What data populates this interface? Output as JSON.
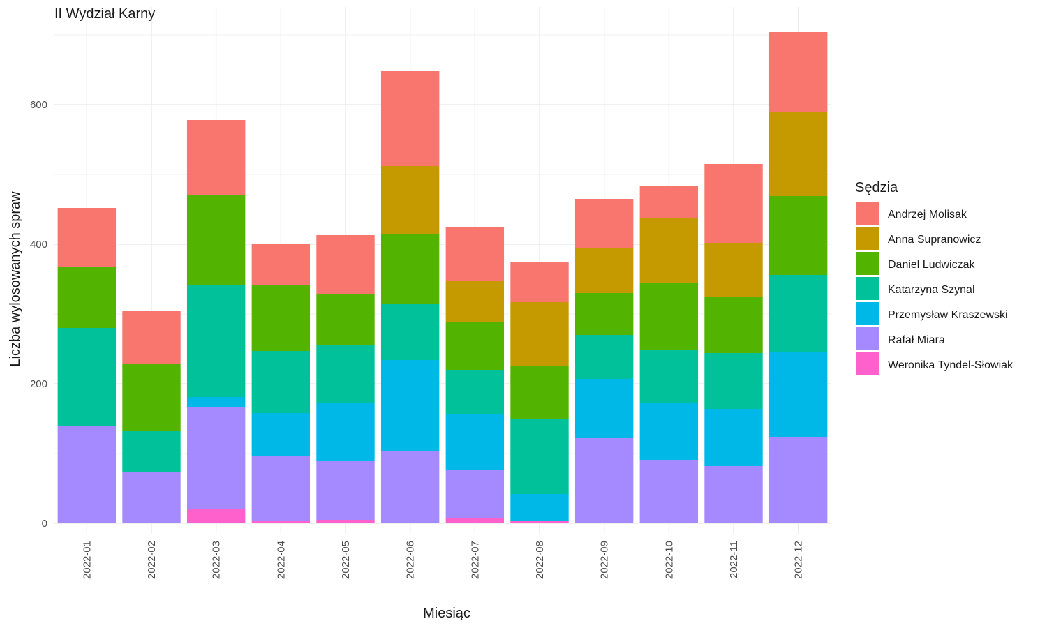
{
  "chart_data": {
    "type": "bar",
    "stacked": true,
    "title": "II Wydział Karny",
    "xlabel": "Miesiąc",
    "ylabel": "Liczba wylosowanych spraw",
    "ylim": [
      0,
      700
    ],
    "yticks": [
      0,
      200,
      400,
      600
    ],
    "grid": true,
    "legend_title": "Sędzia",
    "legend_position": "right",
    "categories": [
      "2022-01",
      "2022-02",
      "2022-03",
      "2022-04",
      "2022-05",
      "2022-06",
      "2022-07",
      "2022-08",
      "2022-09",
      "2022-10",
      "2022-11",
      "2022-12"
    ],
    "series": [
      {
        "name": "Weronika Tyndel-Słowiak",
        "color": "#FF61CC",
        "values": [
          0,
          0,
          20,
          4,
          5,
          0,
          8,
          4,
          0,
          0,
          0,
          0
        ]
      },
      {
        "name": "Rafał Miara",
        "color": "#A58AFF",
        "values": [
          139,
          73,
          147,
          92,
          84,
          104,
          69,
          0,
          122,
          91,
          82,
          124
        ]
      },
      {
        "name": "Przemysław Kraszewski",
        "color": "#00B8E7",
        "values": [
          0,
          0,
          14,
          62,
          84,
          130,
          80,
          38,
          85,
          82,
          82,
          121
        ]
      },
      {
        "name": "Katarzyna Szynal",
        "color": "#00C19A",
        "values": [
          141,
          59,
          161,
          89,
          83,
          80,
          63,
          107,
          63,
          76,
          80,
          111
        ]
      },
      {
        "name": "Daniel Ludwiczak",
        "color": "#53B400",
        "values": [
          88,
          96,
          129,
          94,
          72,
          101,
          68,
          76,
          60,
          96,
          80,
          113
        ]
      },
      {
        "name": "Anna Supranowicz",
        "color": "#C49A00",
        "values": [
          0,
          0,
          0,
          0,
          0,
          97,
          59,
          92,
          64,
          92,
          78,
          120
        ]
      },
      {
        "name": "Andrzej Molisak",
        "color": "#F8766D",
        "values": [
          84,
          76,
          107,
          59,
          85,
          136,
          78,
          57,
          71,
          46,
          113,
          115
        ]
      }
    ]
  }
}
